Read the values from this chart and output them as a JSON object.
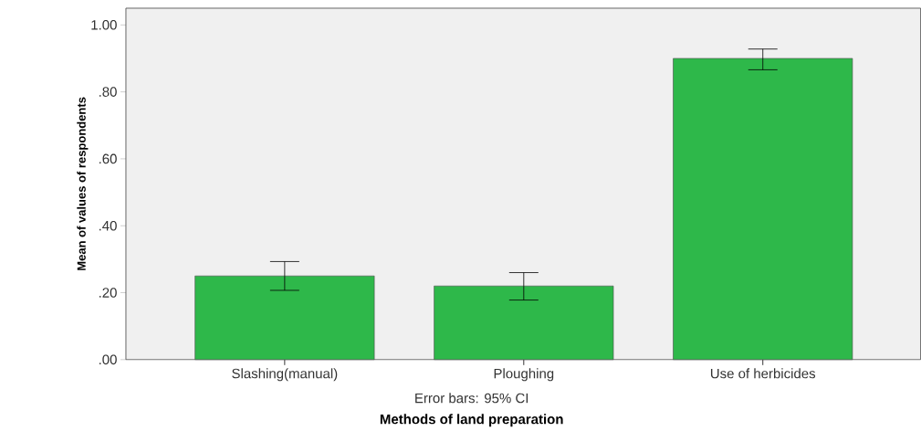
{
  "chart_data": {
    "type": "bar",
    "categories": [
      "Slashing(manual)",
      "Ploughing",
      "Use of herbicides"
    ],
    "values": [
      0.25,
      0.22,
      0.9
    ],
    "errors": [
      [
        0.207,
        0.293
      ],
      [
        0.178,
        0.26
      ],
      [
        0.866,
        0.928
      ]
    ],
    "color": "#2eb84a",
    "ylim": [
      0,
      1.05
    ],
    "yticks": [
      {
        "value": 0,
        "label": ".00"
      },
      {
        "value": 0.2,
        "label": ".20"
      },
      {
        "value": 0.4,
        "label": ".40"
      },
      {
        "value": 0.6,
        "label": ".60"
      },
      {
        "value": 0.8,
        "label": ".80"
      },
      {
        "value": 1.0,
        "label": "1.00"
      }
    ],
    "ylabel": "Mean of values of respondents",
    "xlabel": "Methods of land preparation",
    "annotations": [
      "Error bars: 95% CI"
    ],
    "grid": false
  }
}
